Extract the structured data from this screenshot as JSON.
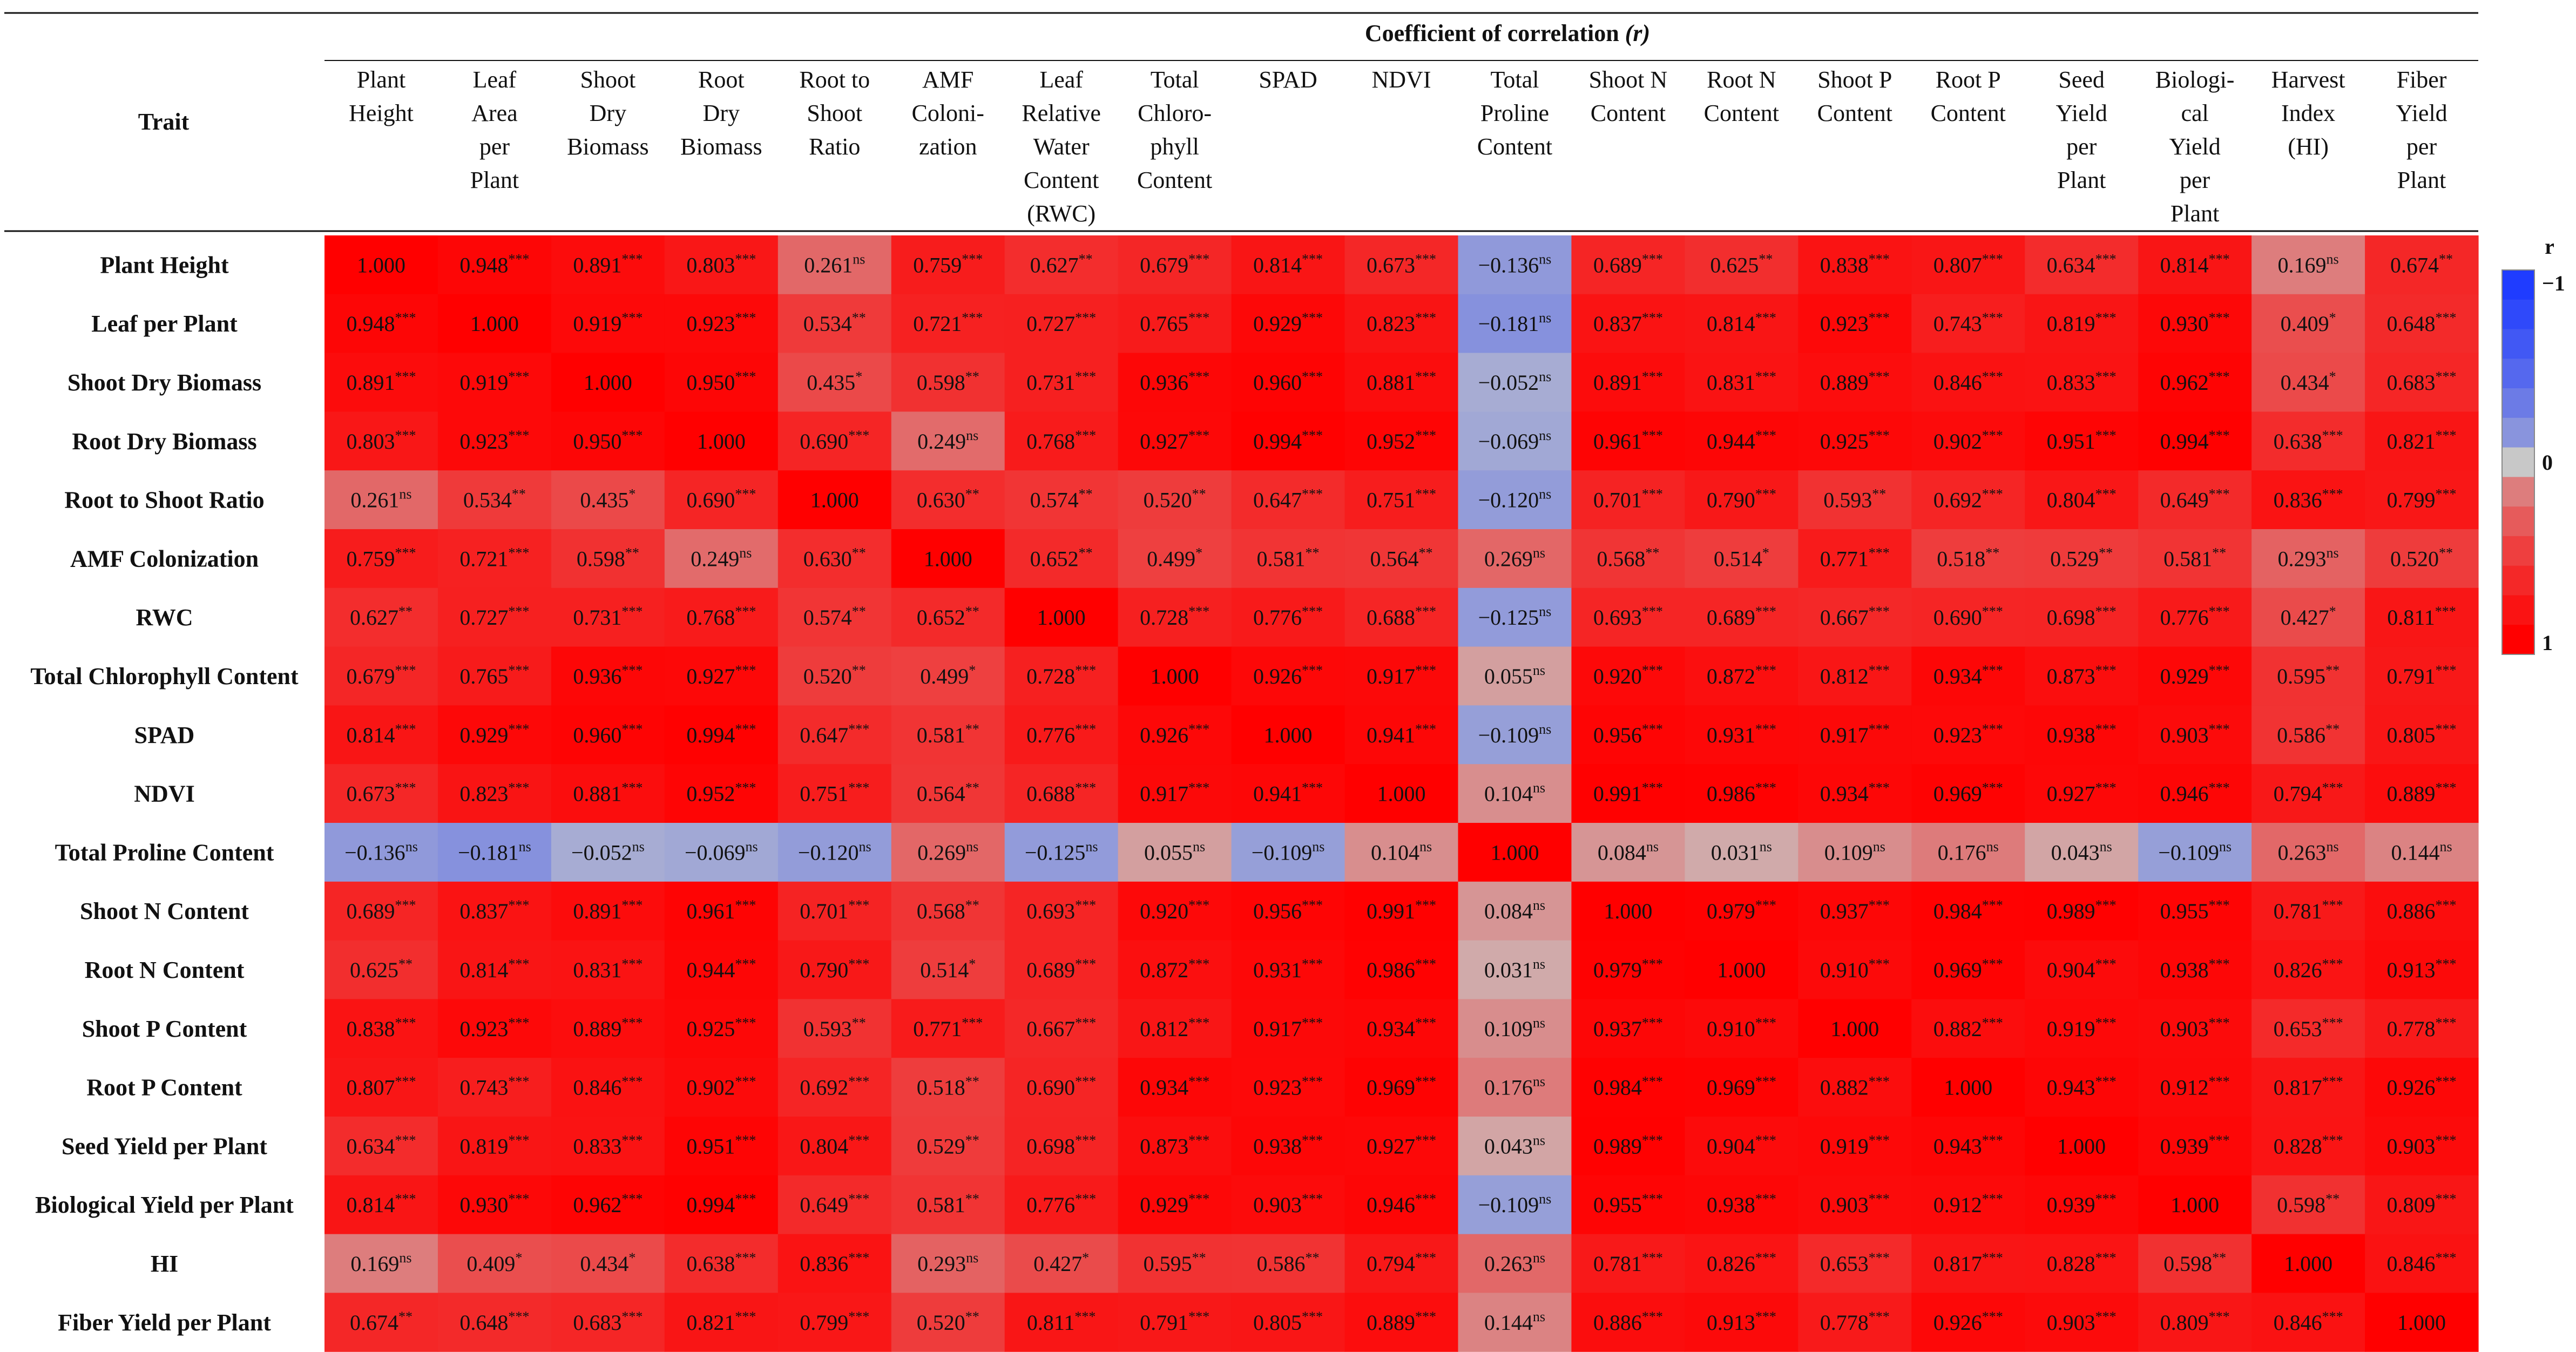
{
  "header": {
    "super_title": "Coefficient of correlation",
    "super_title_symbol": "(r)",
    "trait_label": "Trait"
  },
  "chart_data": {
    "type": "heatmap",
    "col_labels": [
      [
        "Plant",
        "Height"
      ],
      [
        "Leaf",
        "Area",
        "per",
        "Plant"
      ],
      [
        "Shoot",
        "Dry",
        "Biomass"
      ],
      [
        "Root",
        "Dry",
        "Biomass"
      ],
      [
        "Root to",
        "Shoot",
        "Ratio"
      ],
      [
        "AMF",
        "Coloni-",
        "zation"
      ],
      [
        "Leaf",
        "Relative",
        "Water",
        "Content",
        "(RWC)"
      ],
      [
        "Total",
        "Chloro-",
        "phyll",
        "Content"
      ],
      [
        "SPAD"
      ],
      [
        "NDVI"
      ],
      [
        "Total",
        "Proline",
        "Content"
      ],
      [
        "Shoot N",
        "Content"
      ],
      [
        "Root N",
        "Content"
      ],
      [
        "Shoot P",
        "Content"
      ],
      [
        "Root P",
        "Content"
      ],
      [
        "Seed",
        "Yield",
        "per",
        "Plant"
      ],
      [
        "Biologi-",
        "cal",
        "Yield",
        "per",
        "Plant"
      ],
      [
        "Harvest",
        "Index",
        "(HI)"
      ],
      [
        "Fiber",
        "Yield",
        "per",
        "Plant"
      ]
    ],
    "row_labels": [
      "Plant Height",
      "Leaf per Plant",
      "Shoot Dry Biomass",
      "Root Dry Biomass",
      "Root to Shoot Ratio",
      "AMF Colonization",
      "RWC",
      "Total Chlorophyll Content",
      "SPAD",
      "NDVI",
      "Total Proline Content",
      "Shoot N Content",
      "Root N Content",
      "Shoot P Content",
      "Root P Content",
      "Seed Yield per Plant",
      "Biological Yield per Plant",
      "HI",
      "Fiber Yield per Plant"
    ],
    "values": [
      [
        1.0,
        0.948,
        0.891,
        0.803,
        0.261,
        0.759,
        0.627,
        0.679,
        0.814,
        0.673,
        -0.136,
        0.689,
        0.625,
        0.838,
        0.807,
        0.634,
        0.814,
        0.169,
        0.674
      ],
      [
        0.948,
        1.0,
        0.919,
        0.923,
        0.534,
        0.721,
        0.727,
        0.765,
        0.929,
        0.823,
        -0.181,
        0.837,
        0.814,
        0.923,
        0.743,
        0.819,
        0.93,
        0.409,
        0.648
      ],
      [
        0.891,
        0.919,
        1.0,
        0.95,
        0.435,
        0.598,
        0.731,
        0.936,
        0.96,
        0.881,
        -0.052,
        0.891,
        0.831,
        0.889,
        0.846,
        0.833,
        0.962,
        0.434,
        0.683
      ],
      [
        0.803,
        0.923,
        0.95,
        1.0,
        0.69,
        0.249,
        0.768,
        0.927,
        0.994,
        0.952,
        -0.069,
        0.961,
        0.944,
        0.925,
        0.902,
        0.951,
        0.994,
        0.638,
        0.821
      ],
      [
        0.261,
        0.534,
        0.435,
        0.69,
        1.0,
        0.63,
        0.574,
        0.52,
        0.647,
        0.751,
        -0.12,
        0.701,
        0.79,
        0.593,
        0.692,
        0.804,
        0.649,
        0.836,
        0.799
      ],
      [
        0.759,
        0.721,
        0.598,
        0.249,
        0.63,
        1.0,
        0.652,
        0.499,
        0.581,
        0.564,
        0.269,
        0.568,
        0.514,
        0.771,
        0.518,
        0.529,
        0.581,
        0.293,
        0.52
      ],
      [
        0.627,
        0.727,
        0.731,
        0.768,
        0.574,
        0.652,
        1.0,
        0.728,
        0.776,
        0.688,
        -0.125,
        0.693,
        0.689,
        0.667,
        0.69,
        0.698,
        0.776,
        0.427,
        0.811
      ],
      [
        0.679,
        0.765,
        0.936,
        0.927,
        0.52,
        0.499,
        0.728,
        1.0,
        0.926,
        0.917,
        0.055,
        0.92,
        0.872,
        0.812,
        0.934,
        0.873,
        0.929,
        0.595,
        0.791
      ],
      [
        0.814,
        0.929,
        0.96,
        0.994,
        0.647,
        0.581,
        0.776,
        0.926,
        1.0,
        0.941,
        -0.109,
        0.956,
        0.931,
        0.917,
        0.923,
        0.938,
        0.903,
        0.586,
        0.805
      ],
      [
        0.673,
        0.823,
        0.881,
        0.952,
        0.751,
        0.564,
        0.688,
        0.917,
        0.941,
        1.0,
        0.104,
        0.991,
        0.986,
        0.934,
        0.969,
        0.927,
        0.946,
        0.794,
        0.889
      ],
      [
        -0.136,
        -0.181,
        -0.052,
        -0.069,
        -0.12,
        0.269,
        -0.125,
        0.055,
        -0.109,
        0.104,
        1.0,
        0.084,
        0.031,
        0.109,
        0.176,
        0.043,
        -0.109,
        0.263,
        0.144
      ],
      [
        0.689,
        0.837,
        0.891,
        0.961,
        0.701,
        0.568,
        0.693,
        0.92,
        0.956,
        0.991,
        0.084,
        1.0,
        0.979,
        0.937,
        0.984,
        0.989,
        0.955,
        0.781,
        0.886
      ],
      [
        0.625,
        0.814,
        0.831,
        0.944,
        0.79,
        0.514,
        0.689,
        0.872,
        0.931,
        0.986,
        0.031,
        0.979,
        1.0,
        0.91,
        0.969,
        0.904,
        0.938,
        0.826,
        0.913
      ],
      [
        0.838,
        0.923,
        0.889,
        0.925,
        0.593,
        0.771,
        0.667,
        0.812,
        0.917,
        0.934,
        0.109,
        0.937,
        0.91,
        1.0,
        0.882,
        0.919,
        0.903,
        0.653,
        0.778
      ],
      [
        0.807,
        0.743,
        0.846,
        0.902,
        0.692,
        0.518,
        0.69,
        0.934,
        0.923,
        0.969,
        0.176,
        0.984,
        0.969,
        0.882,
        1.0,
        0.943,
        0.912,
        0.817,
        0.926
      ],
      [
        0.634,
        0.819,
        0.833,
        0.951,
        0.804,
        0.529,
        0.698,
        0.873,
        0.938,
        0.927,
        0.043,
        0.989,
        0.904,
        0.919,
        0.943,
        1.0,
        0.939,
        0.828,
        0.903
      ],
      [
        0.814,
        0.93,
        0.962,
        0.994,
        0.649,
        0.581,
        0.776,
        0.929,
        0.903,
        0.946,
        -0.109,
        0.955,
        0.938,
        0.903,
        0.912,
        0.939,
        1.0,
        0.598,
        0.809
      ],
      [
        0.169,
        0.409,
        0.434,
        0.638,
        0.836,
        0.293,
        0.427,
        0.595,
        0.586,
        0.794,
        0.263,
        0.781,
        0.826,
        0.653,
        0.817,
        0.828,
        0.598,
        1.0,
        0.846
      ],
      [
        0.674,
        0.648,
        0.683,
        0.821,
        0.799,
        0.52,
        0.811,
        0.791,
        0.805,
        0.889,
        0.144,
        0.886,
        0.913,
        0.778,
        0.926,
        0.903,
        0.809,
        0.846,
        1.0
      ]
    ],
    "significance": [
      [
        "",
        "***",
        "***",
        "***",
        "ns",
        "***",
        "**",
        "***",
        "***",
        "***",
        "ns",
        "***",
        "**",
        "***",
        "***",
        "***",
        "***",
        "ns",
        "**"
      ],
      [
        "***",
        "",
        "***",
        "***",
        "**",
        "***",
        "***",
        "***",
        "***",
        "***",
        "ns",
        "***",
        "***",
        "***",
        "***",
        "***",
        "***",
        "*",
        "***"
      ],
      [
        "***",
        "***",
        "",
        "***",
        "*",
        "**",
        "***",
        "***",
        "***",
        "***",
        "ns",
        "***",
        "***",
        "***",
        "***",
        "***",
        "***",
        "*",
        "***"
      ],
      [
        "***",
        "***",
        "***",
        "",
        "***",
        "ns",
        "***",
        "***",
        "***",
        "***",
        "ns",
        "***",
        "***",
        "***",
        "***",
        "***",
        "***",
        "***",
        "***"
      ],
      [
        "ns",
        "**",
        "*",
        "***",
        "",
        "**",
        "**",
        "**",
        "***",
        "***",
        "ns",
        "***",
        "***",
        "**",
        "***",
        "***",
        "***",
        "***",
        "***"
      ],
      [
        "***",
        "***",
        "**",
        "ns",
        "**",
        "",
        "**",
        "*",
        "**",
        "**",
        "ns",
        "**",
        "*",
        "***",
        "**",
        "**",
        "**",
        "ns",
        "**"
      ],
      [
        "**",
        "***",
        "***",
        "***",
        "**",
        "**",
        "",
        "***",
        "***",
        "***",
        "ns",
        "***",
        "***",
        "***",
        "***",
        "***",
        "***",
        "*",
        "***"
      ],
      [
        "***",
        "***",
        "***",
        "***",
        "**",
        "*",
        "***",
        "",
        "***",
        "***",
        "ns",
        "***",
        "***",
        "***",
        "***",
        "***",
        "***",
        "**",
        "***"
      ],
      [
        "***",
        "***",
        "***",
        "***",
        "***",
        "**",
        "***",
        "***",
        "",
        "***",
        "ns",
        "***",
        "***",
        "***",
        "***",
        "***",
        "***",
        "**",
        "***"
      ],
      [
        "***",
        "***",
        "***",
        "***",
        "***",
        "**",
        "***",
        "***",
        "***",
        "",
        "ns",
        "***",
        "***",
        "***",
        "***",
        "***",
        "***",
        "***",
        "***"
      ],
      [
        "ns",
        "ns",
        "ns",
        "ns",
        "ns",
        "ns",
        "ns",
        "ns",
        "ns",
        "ns",
        "",
        "ns",
        "ns",
        "ns",
        "ns",
        "ns",
        "ns",
        "ns",
        "ns"
      ],
      [
        "***",
        "***",
        "***",
        "***",
        "***",
        "**",
        "***",
        "***",
        "***",
        "***",
        "ns",
        "",
        "***",
        "***",
        "***",
        "***",
        "***",
        "***",
        "***"
      ],
      [
        "**",
        "***",
        "***",
        "***",
        "***",
        "*",
        "***",
        "***",
        "***",
        "***",
        "ns",
        "***",
        "",
        "***",
        "***",
        "***",
        "***",
        "***",
        "***"
      ],
      [
        "***",
        "***",
        "***",
        "***",
        "**",
        "***",
        "***",
        "***",
        "***",
        "***",
        "ns",
        "***",
        "***",
        "",
        "***",
        "***",
        "***",
        "***",
        "***"
      ],
      [
        "***",
        "***",
        "***",
        "***",
        "***",
        "**",
        "***",
        "***",
        "***",
        "***",
        "ns",
        "***",
        "***",
        "***",
        "",
        "***",
        "***",
        "***",
        "***"
      ],
      [
        "***",
        "***",
        "***",
        "***",
        "***",
        "**",
        "***",
        "***",
        "***",
        "***",
        "ns",
        "***",
        "***",
        "***",
        "***",
        "",
        "***",
        "***",
        "***"
      ],
      [
        "***",
        "***",
        "***",
        "***",
        "***",
        "**",
        "***",
        "***",
        "***",
        "***",
        "ns",
        "***",
        "***",
        "***",
        "***",
        "***",
        "",
        "**",
        "***"
      ],
      [
        "ns",
        "*",
        "*",
        "***",
        "***",
        "ns",
        "*",
        "**",
        "**",
        "***",
        "ns",
        "***",
        "***",
        "***",
        "***",
        "***",
        "**",
        "",
        "***"
      ],
      [
        "**",
        "***",
        "***",
        "***",
        "***",
        "**",
        "***",
        "***",
        "***",
        "***",
        "ns",
        "***",
        "***",
        "***",
        "***",
        "***",
        "***",
        "***",
        ""
      ]
    ],
    "color_scale": {
      "min": -1,
      "max": 1,
      "low_color": "#1f3cff",
      "mid_color": "#c8c8c8",
      "high_color": "#ff0000"
    },
    "legend": {
      "title": "r",
      "ticks": [
        "-1",
        "0",
        "1"
      ],
      "placement": "right"
    }
  }
}
